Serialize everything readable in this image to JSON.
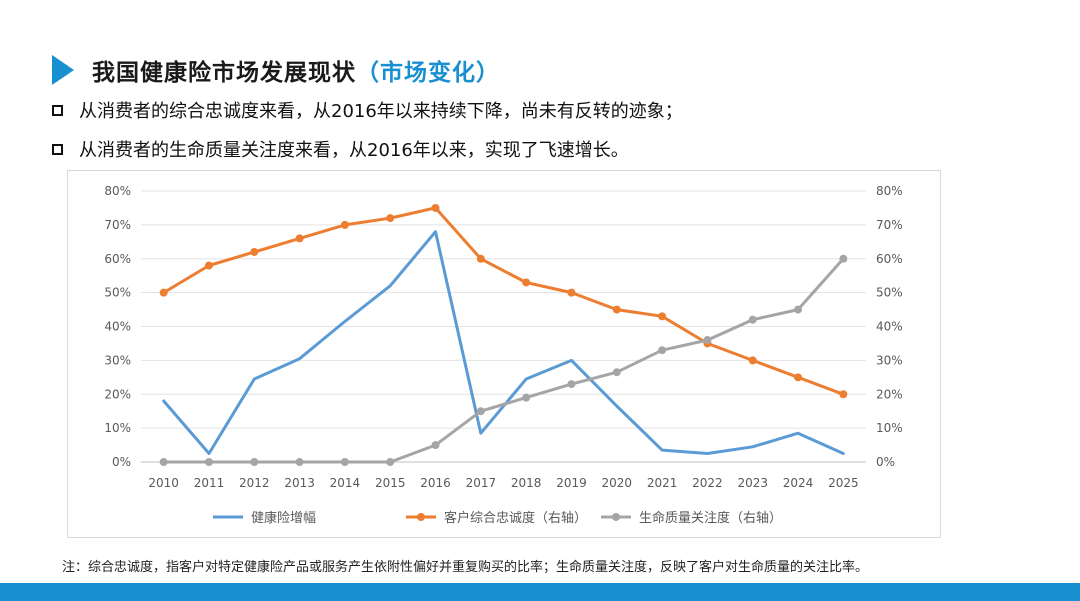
{
  "header": {
    "title_main": "我国健康险市场发展现状",
    "title_sub": "（市场变化）"
  },
  "bullets": [
    "从消费者的综合忠诚度来看，从2016年以来持续下降，尚未有反转的迹象；",
    "从消费者的生命质量关注度来看，从2016年以来，实现了飞速增长。"
  ],
  "note": "注：综合忠诚度，指客户对特定健康险产品或服务产生依附性偏好并重复购买的比率；生命质量关注度，反映了客户对生命质量的关注比率。",
  "colors": {
    "accent": "#1890d0",
    "blue_series": "#5b9bd5",
    "orange_series": "#ed7d31",
    "gray_series": "#a5a5a5"
  },
  "chart_data": {
    "type": "line",
    "categories": [
      "2010",
      "2011",
      "2012",
      "2013",
      "2014",
      "2015",
      "2016",
      "2017",
      "2018",
      "2019",
      "2020",
      "2021",
      "2022",
      "2023",
      "2024",
      "2025"
    ],
    "ylim": [
      0,
      80
    ],
    "y2lim": [
      0,
      80
    ],
    "y_ticks": [
      "0%",
      "10%",
      "20%",
      "30%",
      "40%",
      "50%",
      "60%",
      "70%",
      "80%"
    ],
    "y2_ticks": [
      "0%",
      "10%",
      "20%",
      "30%",
      "40%",
      "50%",
      "60%",
      "70%",
      "80%"
    ],
    "grid": true,
    "legend_position": "bottom",
    "series": [
      {
        "name": "健康险增幅",
        "axis": "left",
        "color": "#5b9bd5",
        "marker": false,
        "values": [
          18,
          2.5,
          24.5,
          30.5,
          41.5,
          52,
          68,
          8.5,
          24.5,
          30,
          16.5,
          3.5,
          2.5,
          4.5,
          8.5,
          2.5
        ]
      },
      {
        "name": "客户综合忠诚度（右轴）",
        "axis": "right",
        "color": "#ed7d31",
        "marker": true,
        "values": [
          50,
          58,
          62,
          66,
          70,
          72,
          75,
          60,
          53,
          50,
          45,
          43,
          35,
          30,
          25,
          20
        ]
      },
      {
        "name": "生命质量关注度（右轴）",
        "axis": "right",
        "color": "#a5a5a5",
        "marker": true,
        "values": [
          0,
          0,
          0,
          0,
          0,
          0,
          5,
          15,
          19,
          23,
          26.5,
          33,
          36,
          42,
          45,
          60
        ]
      }
    ]
  }
}
